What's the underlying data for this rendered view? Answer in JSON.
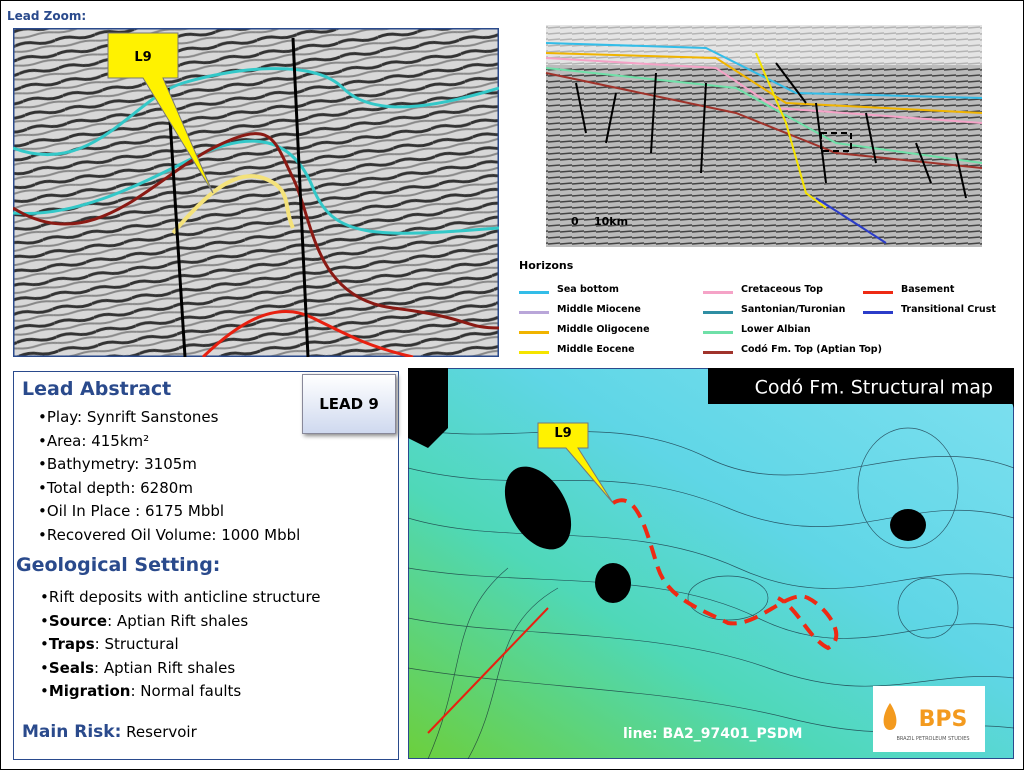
{
  "header": {
    "title": "Lead Zoom:"
  },
  "seismic_zoom": {
    "lead_label": "L9"
  },
  "seismic_section": {
    "scale_start": "0",
    "scale_end": "10km"
  },
  "horizons": {
    "title": "Horizons",
    "items": [
      {
        "name": "Sea bottom",
        "color": "#33bde8"
      },
      {
        "name": "Middle Miocene",
        "color": "#b9a6d9"
      },
      {
        "name": "Middle Oligocene",
        "color": "#f0b400"
      },
      {
        "name": "Middle Eocene",
        "color": "#f5e400"
      },
      {
        "name": "Cretaceous Top",
        "color": "#f5a3c7"
      },
      {
        "name": "Santonian/Turonian",
        "color": "#2f8ea3"
      },
      {
        "name": "Lower Albian",
        "color": "#6fe0a8"
      },
      {
        "name": "Codó Fm. Top (Aptian Top)",
        "color": "#a0332b"
      },
      {
        "name": "Basement",
        "color": "#ee2a14"
      },
      {
        "name": "Transitional Crust",
        "color": "#2b3cc9"
      }
    ]
  },
  "abstract": {
    "title": "Lead Abstract",
    "badge": "LEAD 9",
    "items": [
      "Play: Synrift Sanstones",
      "Area: 415km²",
      "Bathymetry: 3105m",
      "Total depth: 6280m",
      "Oil  In Place : 6175 Mbbl",
      "Recovered Oil Volume: 1000 Mbbl"
    ]
  },
  "geological_setting": {
    "title": "Geological Setting:",
    "items": [
      {
        "label": "",
        "text": "Rift deposits with anticline structure"
      },
      {
        "label": "Source",
        "text": ": Aptian Rift shales"
      },
      {
        "label": "Traps",
        "text": ": Structural"
      },
      {
        "label": "Seals",
        "text": ": Aptian Rift shales"
      },
      {
        "label": "Migration",
        "text": ": Normal faults"
      }
    ]
  },
  "main_risk": {
    "label": "Main Risk:",
    "text": "Reservoir"
  },
  "map": {
    "title": "Codó Fm. Structural map",
    "lead_label": "L9",
    "line_label": "line: BA2_97401_PSDM"
  },
  "logo": {
    "name": "BPS",
    "subtitle": "BRAZIL PETROLEUM STUDIES"
  }
}
